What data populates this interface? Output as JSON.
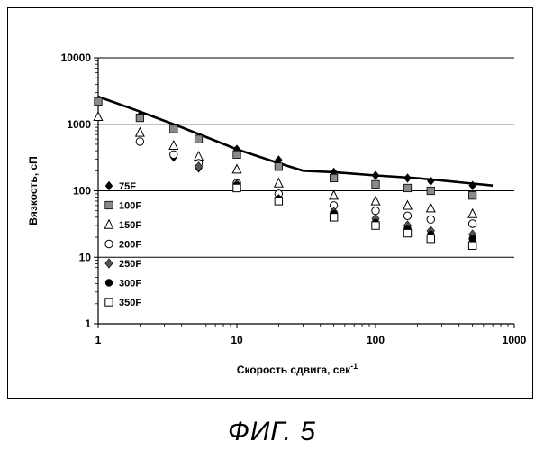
{
  "caption": "ФИГ. 5",
  "chart_data": {
    "type": "scatter",
    "xscale": "log",
    "yscale": "log",
    "xlim": [
      1,
      1000
    ],
    "ylim": [
      1,
      10000
    ],
    "xticks": [
      "1",
      "10",
      "100",
      "1000"
    ],
    "yticks": [
      "1",
      "10",
      "100",
      "1000",
      "10000"
    ],
    "xlabel": "Скорость сдвига, сек",
    "xlabel_sup": "-1",
    "ylabel": "Вязкость, сП",
    "grid": "horizontal",
    "legend_position": "left-inside",
    "series": [
      {
        "name": "75F",
        "marker": "diamond-filled",
        "x": [
          1,
          2,
          3.5,
          5.3,
          10,
          20,
          50,
          100,
          170,
          250,
          500
        ],
        "y": [
          2300,
          1350,
          320,
          220,
          420,
          290,
          190,
          170,
          155,
          140,
          120
        ]
      },
      {
        "name": "100F",
        "marker": "square-gray",
        "x": [
          1,
          2,
          3.5,
          5.3,
          10,
          20,
          50,
          100,
          170,
          250,
          500
        ],
        "y": [
          2200,
          1250,
          850,
          600,
          350,
          230,
          155,
          125,
          110,
          100,
          85
        ]
      },
      {
        "name": "150F",
        "marker": "triangle-open",
        "x": [
          1,
          2,
          3.5,
          5.3,
          10,
          20,
          50,
          100,
          170,
          250,
          500
        ],
        "y": [
          1300,
          750,
          480,
          330,
          210,
          130,
          85,
          70,
          60,
          55,
          45
        ]
      },
      {
        "name": "200F",
        "marker": "circle-open",
        "x": [
          2,
          3.5,
          5.3,
          10,
          20,
          50,
          100,
          170,
          250,
          500
        ],
        "y": [
          550,
          350,
          260,
          130,
          90,
          60,
          50,
          42,
          37,
          32
        ]
      },
      {
        "name": "250F",
        "marker": "diamond-gray",
        "x": [
          5.3,
          10,
          20,
          50,
          100,
          170,
          250,
          500
        ],
        "y": [
          230,
          125,
          75,
          48,
          38,
          30,
          25,
          22
        ]
      },
      {
        "name": "300F",
        "marker": "circle-filled",
        "x": [
          10,
          20,
          50,
          100,
          170,
          250,
          500
        ],
        "y": [
          120,
          75,
          45,
          33,
          27,
          22,
          19
        ]
      },
      {
        "name": "350F",
        "marker": "square-open",
        "x": [
          10,
          20,
          50,
          100,
          170,
          250,
          500
        ],
        "y": [
          110,
          70,
          40,
          30,
          23,
          19,
          15
        ]
      }
    ],
    "fit_line": {
      "x": [
        1,
        2,
        4,
        10,
        20,
        30,
        50,
        100,
        200,
        700
      ],
      "y": [
        2600,
        1550,
        900,
        420,
        260,
        200,
        190,
        170,
        155,
        120
      ]
    }
  }
}
